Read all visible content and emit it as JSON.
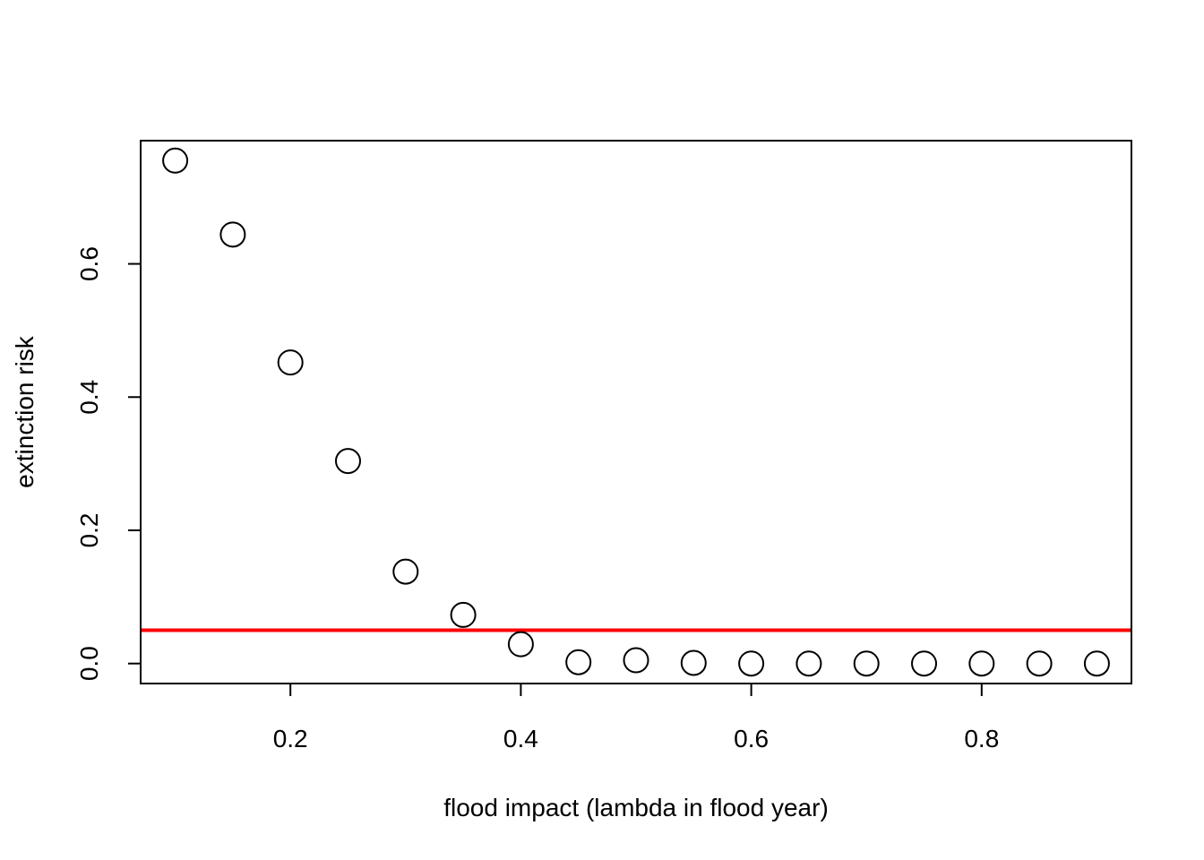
{
  "chart_data": {
    "type": "scatter",
    "title": "",
    "xlabel": "flood impact (lambda in flood year)",
    "ylabel": "extinction risk",
    "xlim": [
      0.07,
      0.93
    ],
    "ylim": [
      -0.03,
      0.785
    ],
    "x_ticks": [
      0.2,
      0.4,
      0.6,
      0.8
    ],
    "x_tick_labels": [
      "0.2",
      "0.4",
      "0.6",
      "0.8"
    ],
    "y_ticks": [
      0.0,
      0.2,
      0.4,
      0.6
    ],
    "y_tick_labels": [
      "0.0",
      "0.2",
      "0.4",
      "0.6"
    ],
    "grid": false,
    "marker": "open-circle",
    "series": [
      {
        "x": [
          0.1,
          0.15,
          0.2,
          0.25,
          0.3,
          0.35,
          0.4,
          0.45,
          0.5,
          0.55,
          0.6,
          0.65,
          0.7,
          0.75,
          0.8,
          0.85,
          0.9
        ],
        "y": [
          0.755,
          0.644,
          0.452,
          0.304,
          0.138,
          0.073,
          0.029,
          0.002,
          0.005,
          0.001,
          0.0,
          0.0,
          0.0,
          0.0,
          0.0,
          0.0,
          0.0
        ]
      }
    ],
    "reference_lines": [
      {
        "orientation": "horizontal",
        "y": 0.05,
        "color": "#ff0000"
      }
    ]
  }
}
